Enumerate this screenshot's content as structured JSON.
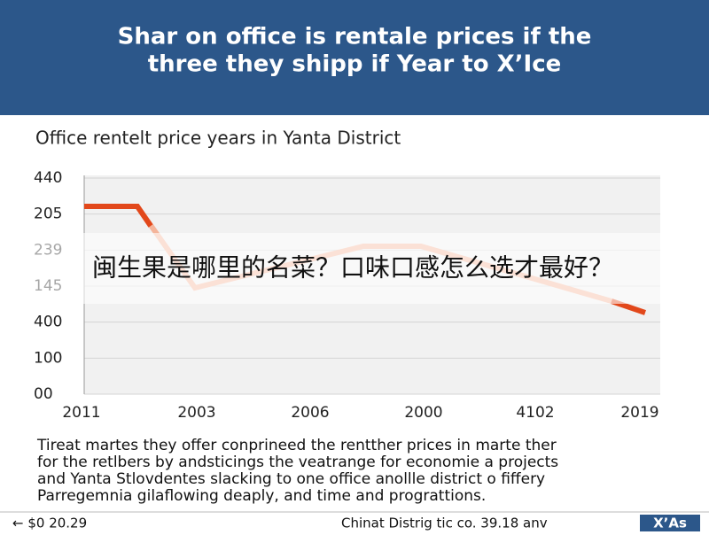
{
  "header": {
    "title_lines": [
      "Shar on office is rentale prices if the",
      "three they shipp if Year to X’Ice"
    ]
  },
  "chart": {
    "title": "Office rentelt price years in Yanta District",
    "y_labels": [
      "440",
      "205",
      "239",
      "145",
      "400",
      "100",
      "00"
    ],
    "x_labels": [
      "2011",
      "2003",
      "2006",
      "2000",
      "4102",
      "2019"
    ]
  },
  "overlay": {
    "caption": "闽生果是哪里的名菜？口味口感怎么选才最好？"
  },
  "body": {
    "lines": [
      "Tireat martes they offer conprineed the rentther prices in marte ther",
      "for the retlbers by andsticings the veatrange for economie a projects",
      "and Yanta Stlovdentes slacking to one office anollle district o fiffery",
      "Parregemnia gilaflowing deaply, and time and prograttions."
    ]
  },
  "footer": {
    "left": "← $0 20.29",
    "center": "Chinat Distrig tic co. 39.18 anv",
    "badge": "X’As"
  }
}
